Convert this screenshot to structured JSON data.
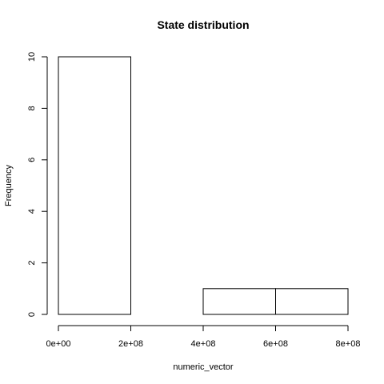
{
  "chart_data": {
    "type": "bar",
    "subtype": "histogram",
    "title": "State distribution",
    "xlabel": "numeric_vector",
    "ylabel": "Frequency",
    "bins": [
      {
        "start": 0,
        "end": 200000000,
        "count": 10
      },
      {
        "start": 200000000,
        "end": 400000000,
        "count": 0
      },
      {
        "start": 400000000,
        "end": 600000000,
        "count": 1
      },
      {
        "start": 600000000,
        "end": 800000000,
        "count": 1
      }
    ],
    "xlim": [
      0,
      800000000
    ],
    "ylim": [
      0,
      10
    ],
    "x_ticks": [
      {
        "value": 0,
        "label": "0e+00"
      },
      {
        "value": 200000000,
        "label": "2e+08"
      },
      {
        "value": 400000000,
        "label": "4e+08"
      },
      {
        "value": 600000000,
        "label": "6e+08"
      },
      {
        "value": 800000000,
        "label": "8e+08"
      }
    ],
    "y_ticks": [
      {
        "value": 0,
        "label": "0"
      },
      {
        "value": 2,
        "label": "2"
      },
      {
        "value": 4,
        "label": "4"
      },
      {
        "value": 6,
        "label": "6"
      },
      {
        "value": 8,
        "label": "8"
      },
      {
        "value": 10,
        "label": "10"
      }
    ],
    "grid": false,
    "bar_fill": "#ffffff",
    "bar_stroke": "#000000"
  }
}
